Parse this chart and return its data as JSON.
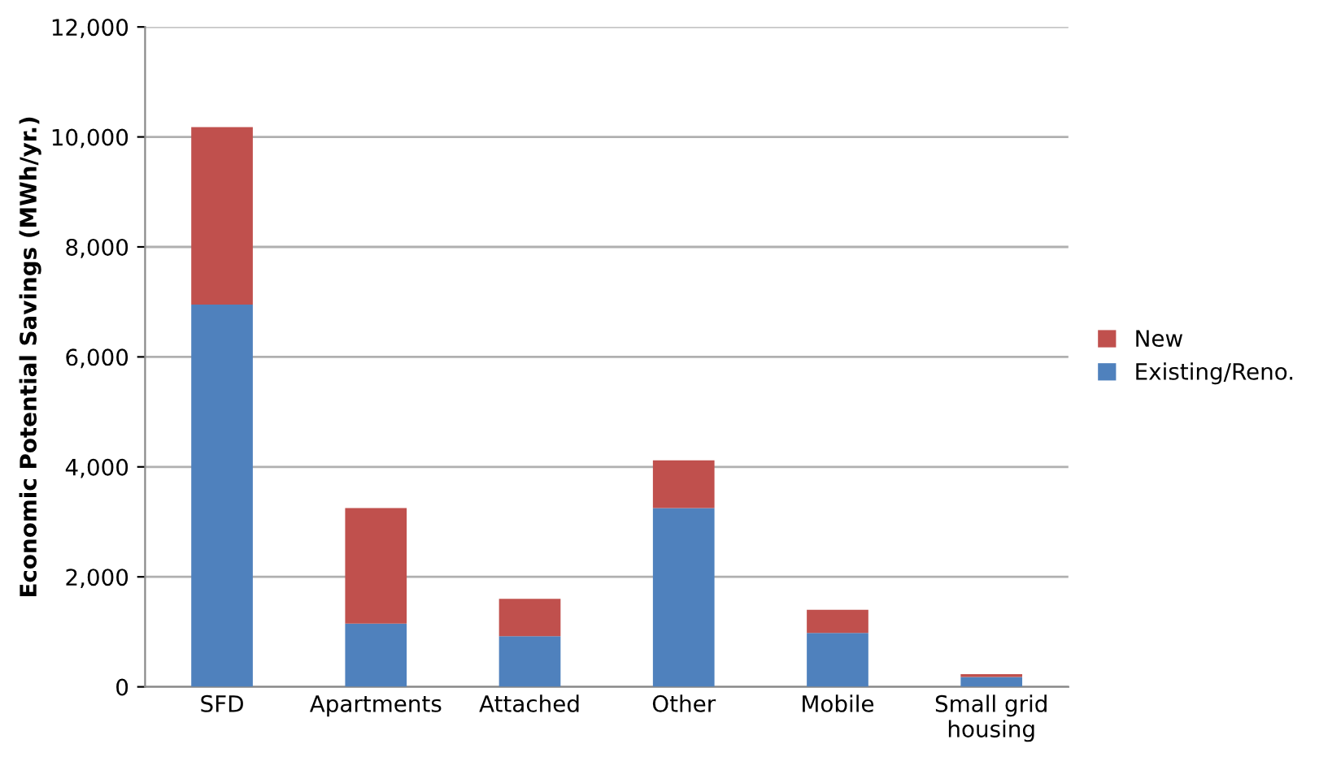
{
  "chart_data": {
    "type": "bar",
    "stacked": true,
    "ylabel": "Economic Potential Savings (MWh/yr.)",
    "categories": [
      "SFD",
      "Apartments",
      "Attached",
      "Other",
      "Mobile",
      "Small grid\nhousing"
    ],
    "series": [
      {
        "name": "Existing/Reno.",
        "color": "#4f81bd",
        "values": [
          6950,
          1150,
          920,
          3250,
          980,
          180
        ]
      },
      {
        "name": "New",
        "color": "#c0504d",
        "values": [
          3230,
          2100,
          680,
          870,
          420,
          50
        ]
      }
    ],
    "ylim": [
      0,
      12000
    ],
    "yticks": [
      {
        "value": 0,
        "label": "0"
      },
      {
        "value": 2000,
        "label": "2,000"
      },
      {
        "value": 4000,
        "label": "4,000"
      },
      {
        "value": 6000,
        "label": "6,000"
      },
      {
        "value": 8000,
        "label": "8,000"
      },
      {
        "value": 10000,
        "label": "10,000"
      },
      {
        "value": 12000,
        "label": "12,000"
      }
    ],
    "grid": "y",
    "legend": "right"
  }
}
